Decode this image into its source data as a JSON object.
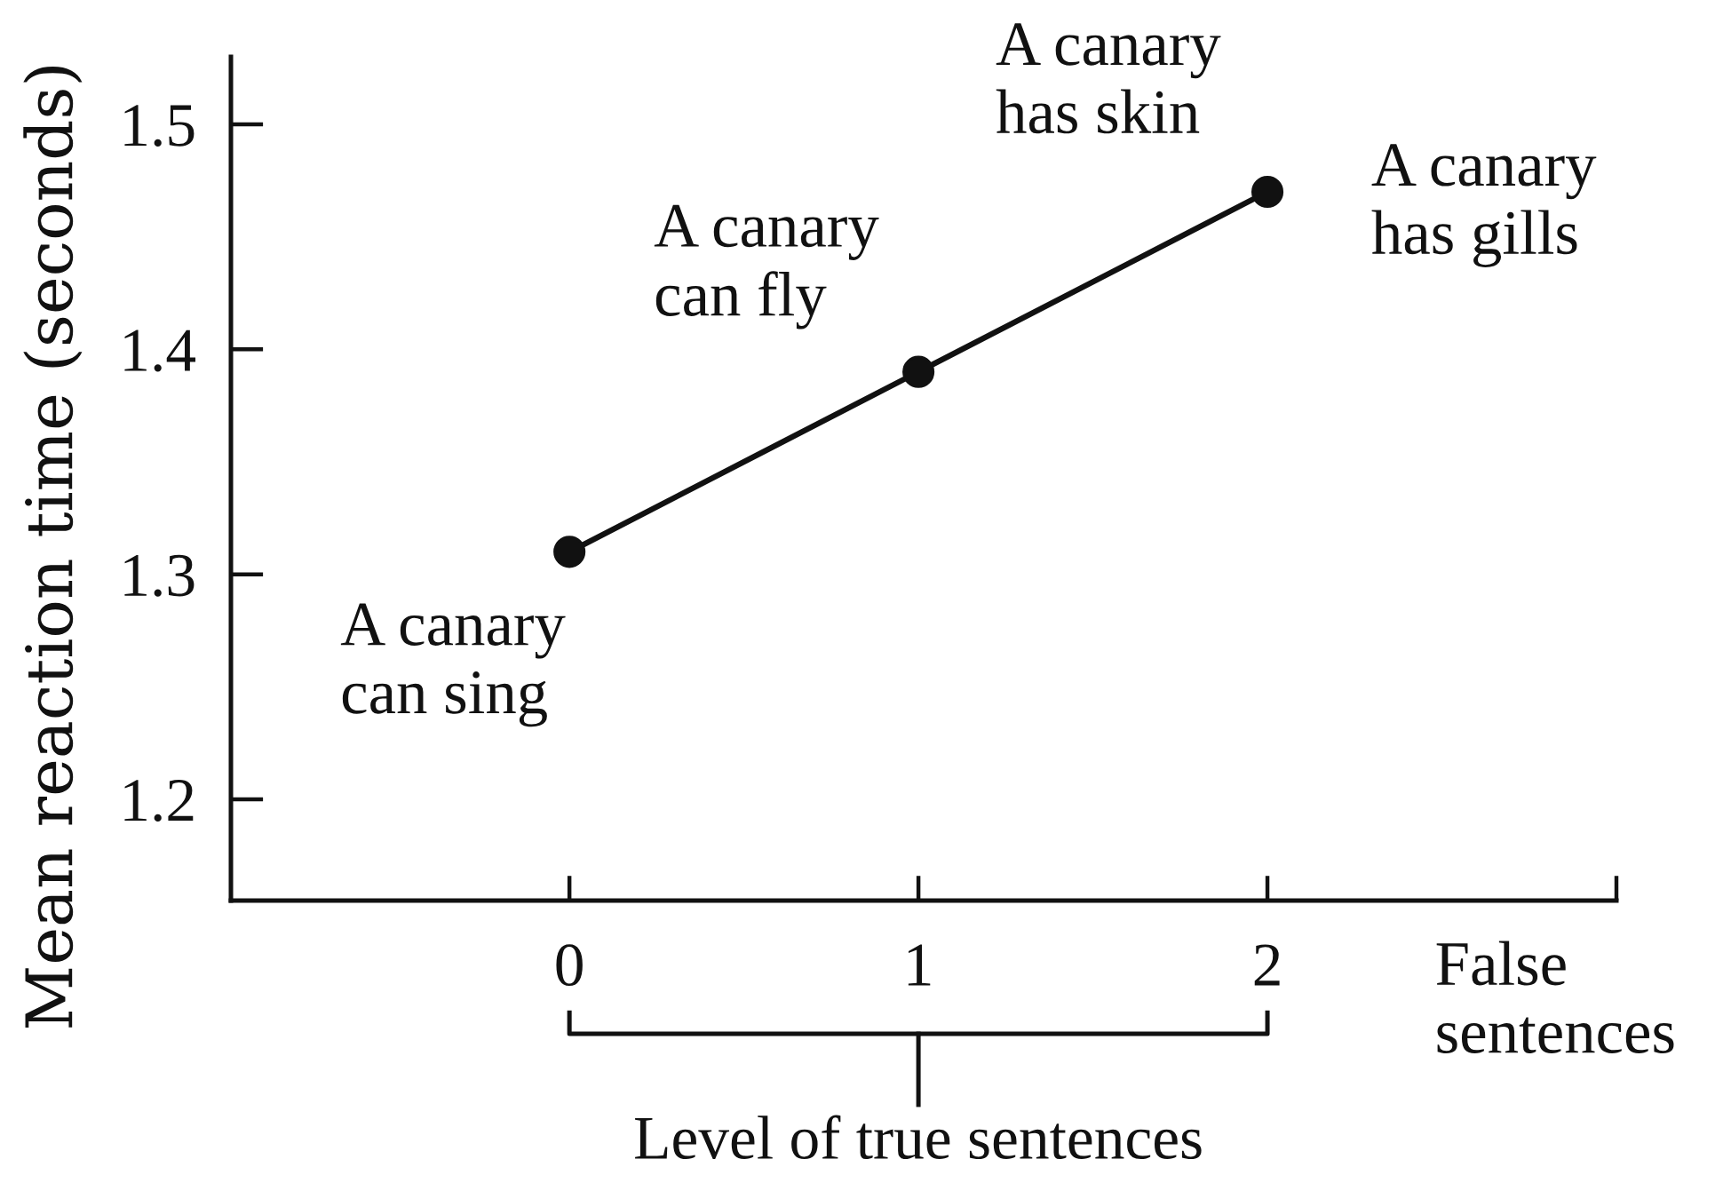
{
  "chart_data": {
    "type": "line",
    "xlabel": "Level of true sentences",
    "ylabel": "Mean reaction time (seconds)",
    "x": [
      0,
      1,
      2
    ],
    "series": [
      {
        "color": "#111111",
        "values": [
          1.31,
          1.39,
          1.47
        ]
      }
    ],
    "xlim": [
      -0.97,
      3
    ],
    "ylim": [
      1.155,
      1.53
    ],
    "xticks": [
      0,
      1,
      2,
      {
        "value": 3,
        "label": null
      }
    ],
    "yticks": [
      1.2,
      1.3,
      1.4,
      1.5
    ],
    "marker": "circle",
    "line_style": "solid",
    "annotations": [
      {
        "text": "A canary\ncan sing",
        "x": 0,
        "y": 1.31
      },
      {
        "text": "A canary\ncan fly",
        "x": 1,
        "y": 1.39
      },
      {
        "text": "A canary\nhas skin",
        "x": 2,
        "y": 1.47
      },
      "A canary\nhas gills",
      "False\nsentences"
    ]
  }
}
